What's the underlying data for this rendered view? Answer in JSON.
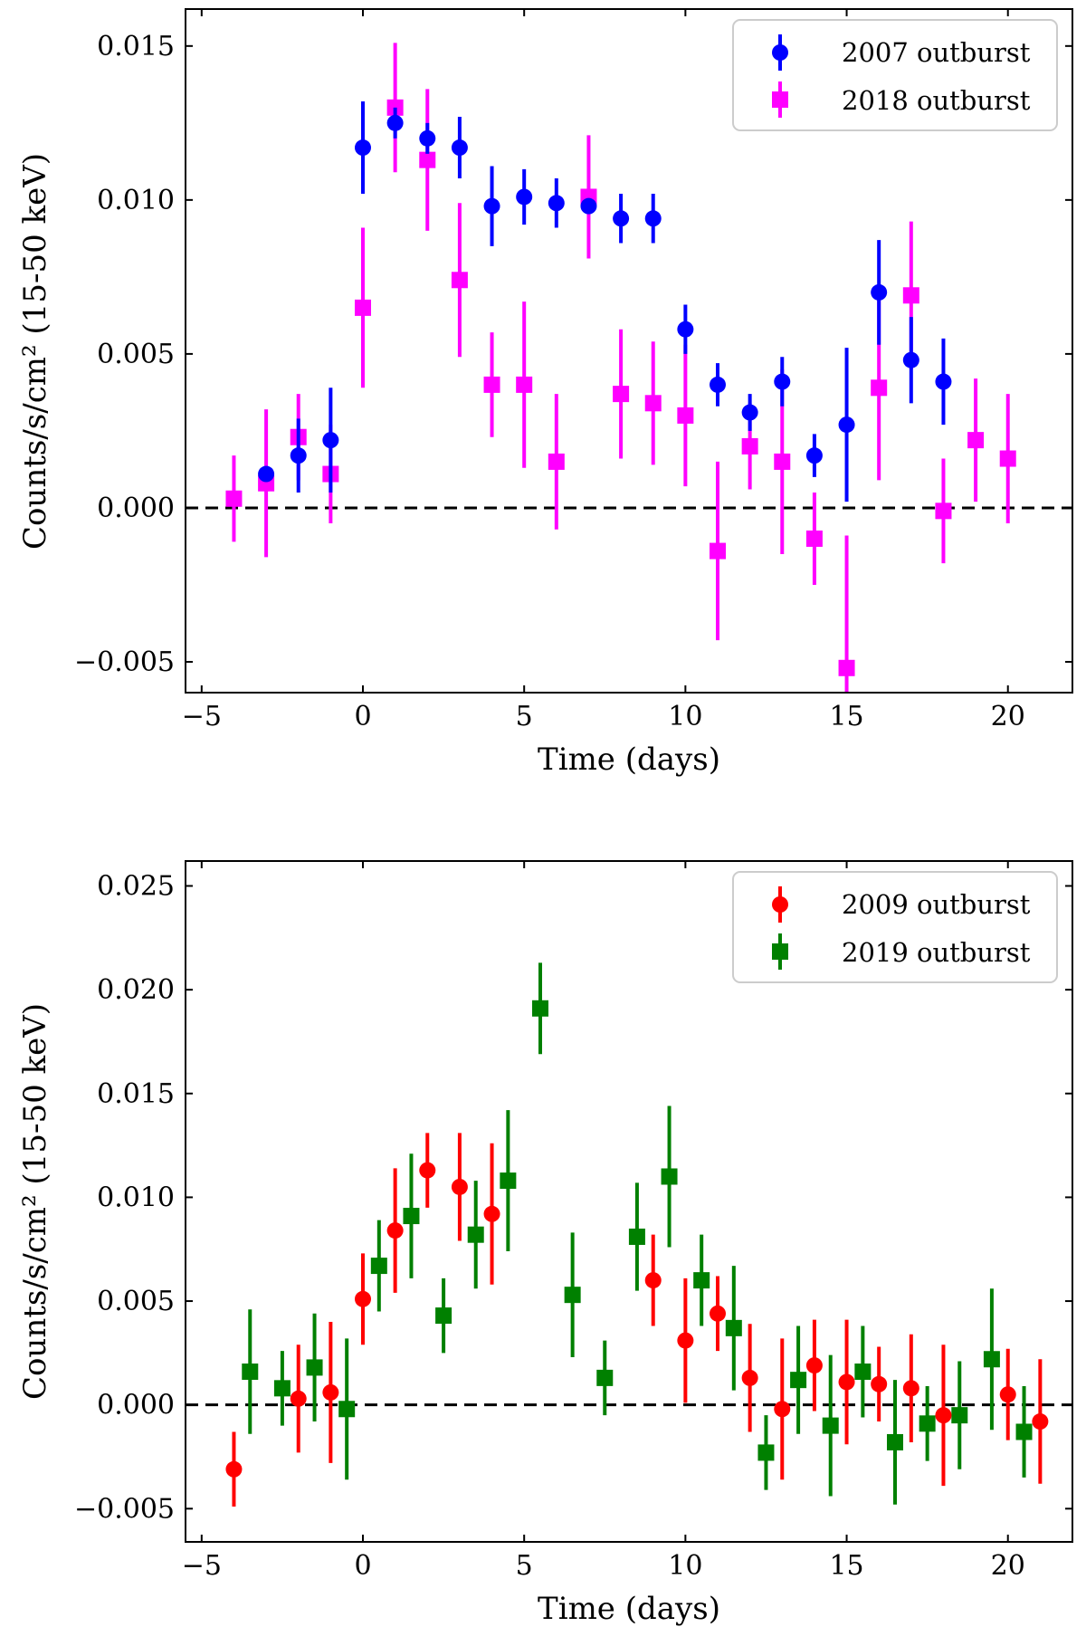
{
  "chart_data": [
    {
      "type": "scatter",
      "xlabel": "Time (days)",
      "ylabel": "Counts/s/cm² (15-50 keV)",
      "xlim": [
        -5.5,
        22
      ],
      "ylim": [
        -0.006,
        0.0162
      ],
      "xticks": [
        -5,
        0,
        5,
        10,
        15,
        20
      ],
      "yticks": [
        -0.005,
        0.0,
        0.005,
        0.01,
        0.015
      ],
      "xtick_labels": [
        "−5",
        "0",
        "5",
        "10",
        "15",
        "20"
      ],
      "ytick_labels": [
        "−0.005",
        "0.000",
        "0.005",
        "0.010",
        "0.015"
      ],
      "reference_line": 0,
      "legend_position": "upper-right",
      "series": [
        {
          "name": "2007 outburst",
          "marker": "circle",
          "color": "#0000ff",
          "x": [
            -3,
            -2,
            -1,
            0,
            1,
            2,
            3,
            4,
            5,
            6,
            7,
            8,
            9,
            10,
            11,
            12,
            13,
            14,
            15,
            16,
            17,
            18
          ],
          "y": [
            0.0011,
            0.0017,
            0.0022,
            0.0117,
            0.0125,
            0.012,
            0.0117,
            0.0098,
            0.0101,
            0.0099,
            0.0098,
            0.0094,
            0.0094,
            0.0058,
            0.004,
            0.0031,
            0.0041,
            0.0017,
            0.0027,
            0.007,
            0.0048,
            0.0041
          ],
          "err": [
            0.0002,
            0.0012,
            0.0017,
            0.0015,
            0.0005,
            0.0005,
            0.001,
            0.0013,
            0.0009,
            0.0008,
            0.0002,
            0.0008,
            0.0008,
            0.0008,
            0.0007,
            0.0006,
            0.0008,
            0.0007,
            0.0025,
            0.0017,
            0.0014,
            0.0014
          ]
        },
        {
          "name": "2018 outburst",
          "marker": "square",
          "color": "#ff00ff",
          "x": [
            -4,
            -3,
            -2,
            -1,
            0,
            1,
            2,
            3,
            4,
            5,
            6,
            7,
            8,
            9,
            10,
            11,
            12,
            13,
            14,
            15,
            16,
            17,
            18,
            19,
            20
          ],
          "y": [
            0.0003,
            0.0008,
            0.0023,
            0.0011,
            0.0065,
            0.013,
            0.0113,
            0.0074,
            0.004,
            0.004,
            0.0015,
            0.0101,
            0.0037,
            0.0034,
            0.003,
            -0.0014,
            0.002,
            0.0015,
            -0.001,
            -0.0052,
            0.0039,
            0.0069,
            -0.0001,
            0.0022,
            0.0016
          ],
          "err": [
            0.0014,
            0.0024,
            0.0014,
            0.0016,
            0.0026,
            0.0021,
            0.0023,
            0.0025,
            0.0017,
            0.0027,
            0.0022,
            0.002,
            0.0021,
            0.002,
            0.0023,
            0.0029,
            0.0014,
            0.003,
            0.0015,
            0.0043,
            0.003,
            0.0024,
            0.0017,
            0.002,
            0.0021
          ]
        }
      ]
    },
    {
      "type": "scatter",
      "xlabel": "Time (days)",
      "ylabel": "Counts/s/cm² (15-50 keV)",
      "xlim": [
        -5.5,
        22
      ],
      "ylim": [
        -0.0066,
        0.0262
      ],
      "xticks": [
        -5,
        0,
        5,
        10,
        15,
        20
      ],
      "yticks": [
        -0.005,
        0.0,
        0.005,
        0.01,
        0.015,
        0.02,
        0.025
      ],
      "xtick_labels": [
        "−5",
        "0",
        "5",
        "10",
        "15",
        "20"
      ],
      "ytick_labels": [
        "−0.005",
        "0.000",
        "0.005",
        "0.010",
        "0.015",
        "0.020",
        "0.025"
      ],
      "reference_line": 0,
      "legend_position": "upper-right",
      "series": [
        {
          "name": "2009 outburst",
          "marker": "circle",
          "color": "#ff0000",
          "x": [
            -4,
            -2,
            -1,
            0,
            1,
            2,
            3,
            4,
            9,
            10,
            11,
            12,
            13,
            14,
            15,
            16,
            17,
            18,
            20,
            21
          ],
          "y": [
            -0.0031,
            0.0003,
            0.0006,
            0.0051,
            0.0084,
            0.0113,
            0.0105,
            0.0092,
            0.006,
            0.0031,
            0.0044,
            0.0013,
            -0.0002,
            0.0019,
            0.0011,
            0.001,
            0.0008,
            -0.0005,
            0.0005,
            -0.0008
          ]
        },
        {
          "name": "2019 outburst",
          "marker": "square",
          "color": "#008000",
          "x": [
            -3.5,
            -2.5,
            -1.5,
            -0.5,
            0.5,
            1.5,
            2.5,
            3.5,
            4.5,
            5.5,
            6.5,
            7.5,
            8.5,
            9.5,
            10.5,
            11.5,
            12.5,
            13.5,
            14.5,
            15.5,
            16.5,
            17.5,
            18.5,
            19.5,
            20.5
          ],
          "y": [
            0.0016,
            0.0008,
            0.0018,
            -0.0002,
            0.0067,
            0.0091,
            0.0043,
            0.0082,
            0.0108,
            0.0191,
            0.0053,
            0.0013,
            0.0081,
            0.011,
            0.006,
            0.0037,
            -0.0023,
            0.0012,
            -0.001,
            0.0016,
            -0.0018,
            -0.0009,
            -0.0005,
            0.0022,
            -0.0013
          ]
        }
      ]
    }
  ]
}
